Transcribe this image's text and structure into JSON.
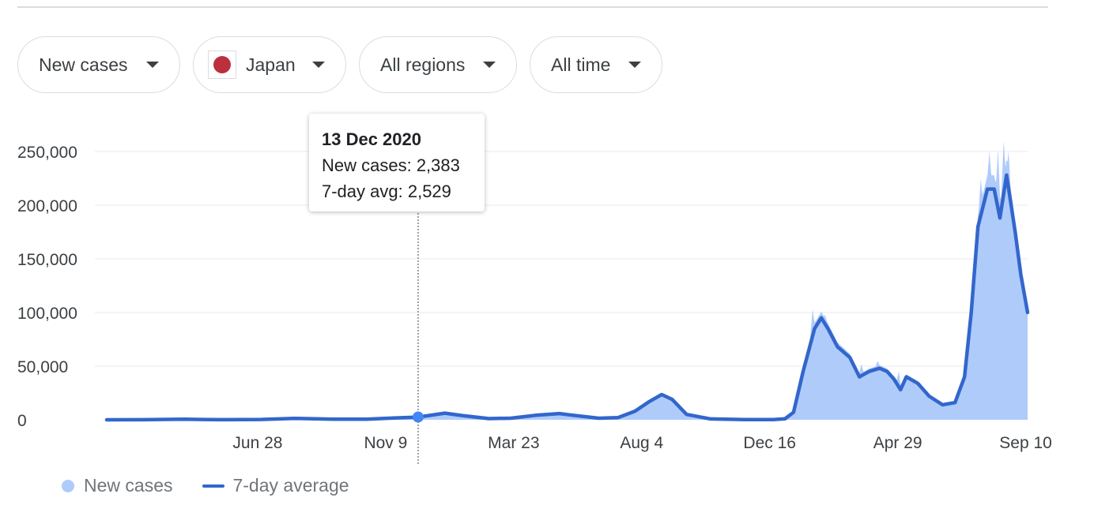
{
  "filters": {
    "metric": "New cases",
    "country": "Japan",
    "region": "All regions",
    "time_range": "All time"
  },
  "colors": {
    "bars": "#aecbfa",
    "line": "#3366cc",
    "flag": "#bc2f3f"
  },
  "tooltip": {
    "date": "13 Dec 2020",
    "new_cases_line": "New cases: 2,383",
    "avg_line": "7-day avg: 2,529"
  },
  "legend": {
    "bars_label": "New cases",
    "line_label": "7-day average"
  },
  "chart_data": {
    "type": "area",
    "title": "",
    "xlabel": "",
    "ylabel": "",
    "ylim": [
      0,
      250000
    ],
    "yticks": [
      0,
      50000,
      100000,
      150000,
      200000,
      250000
    ],
    "ytick_labels": [
      "0",
      "50,000",
      "100,000",
      "150,000",
      "200,000",
      "250,000"
    ],
    "xticks": [
      {
        "date": "2020-06-28",
        "label": "Jun 28"
      },
      {
        "date": "2020-11-09",
        "label": "Nov 9"
      },
      {
        "date": "2021-03-23",
        "label": "Mar 23"
      },
      {
        "date": "2021-08-04",
        "label": "Aug 4"
      },
      {
        "date": "2021-12-16",
        "label": "Dec 16"
      },
      {
        "date": "2022-04-29",
        "label": "Apr 29"
      },
      {
        "date": "2022-09-10",
        "label": "Sep 10"
      }
    ],
    "grid": "horizontal",
    "legend_position": "bottom-left",
    "highlight": {
      "date": "2020-12-13",
      "new_cases": 2383,
      "avg": 2529
    },
    "series": [
      {
        "name": "7-day average",
        "style": "line",
        "points": [
          [
            "2020-01-22",
            0
          ],
          [
            "2020-03-01",
            100
          ],
          [
            "2020-04-12",
            500
          ],
          [
            "2020-05-20",
            100
          ],
          [
            "2020-07-01",
            300
          ],
          [
            "2020-08-05",
            1300
          ],
          [
            "2020-09-15",
            500
          ],
          [
            "2020-10-20",
            600
          ],
          [
            "2020-11-20",
            1800
          ],
          [
            "2020-12-13",
            2529
          ],
          [
            "2021-01-10",
            6200
          ],
          [
            "2021-01-28",
            4000
          ],
          [
            "2021-02-25",
            1100
          ],
          [
            "2021-03-20",
            1500
          ],
          [
            "2021-04-15",
            4200
          ],
          [
            "2021-05-10",
            5800
          ],
          [
            "2021-05-20",
            4600
          ],
          [
            "2021-06-20",
            1500
          ],
          [
            "2021-07-10",
            2000
          ],
          [
            "2021-07-28",
            8000
          ],
          [
            "2021-08-12",
            17000
          ],
          [
            "2021-08-25",
            23500
          ],
          [
            "2021-09-05",
            19000
          ],
          [
            "2021-09-20",
            5000
          ],
          [
            "2021-10-15",
            800
          ],
          [
            "2021-11-20",
            150
          ],
          [
            "2021-12-20",
            200
          ],
          [
            "2022-01-01",
            900
          ],
          [
            "2022-01-10",
            7000
          ],
          [
            "2022-01-20",
            45000
          ],
          [
            "2022-02-01",
            85000
          ],
          [
            "2022-02-08",
            95000
          ],
          [
            "2022-02-15",
            85000
          ],
          [
            "2022-02-25",
            68000
          ],
          [
            "2022-03-10",
            58000
          ],
          [
            "2022-03-20",
            40000
          ],
          [
            "2022-03-30",
            45000
          ],
          [
            "2022-04-10",
            48000
          ],
          [
            "2022-04-18",
            45000
          ],
          [
            "2022-04-25",
            38000
          ],
          [
            "2022-05-02",
            28000
          ],
          [
            "2022-05-08",
            40000
          ],
          [
            "2022-05-20",
            34000
          ],
          [
            "2022-06-01",
            22000
          ],
          [
            "2022-06-15",
            14000
          ],
          [
            "2022-06-28",
            16000
          ],
          [
            "2022-07-08",
            40000
          ],
          [
            "2022-07-15",
            100000
          ],
          [
            "2022-07-22",
            180000
          ],
          [
            "2022-08-01",
            215000
          ],
          [
            "2022-08-08",
            215000
          ],
          [
            "2022-08-14",
            188000
          ],
          [
            "2022-08-21",
            228000
          ],
          [
            "2022-08-30",
            175000
          ],
          [
            "2022-09-05",
            135000
          ],
          [
            "2022-09-12",
            100000
          ]
        ]
      },
      {
        "name": "New cases",
        "style": "bars",
        "points": [
          [
            "2022-01-30",
            103000
          ],
          [
            "2022-02-12",
            98000
          ],
          [
            "2022-03-22",
            52000
          ],
          [
            "2022-04-08",
            55000
          ],
          [
            "2022-04-30",
            45000
          ],
          [
            "2022-07-25",
            225000
          ],
          [
            "2022-08-03",
            250000
          ],
          [
            "2022-08-12",
            252000
          ],
          [
            "2022-08-18",
            260000
          ],
          [
            "2022-08-23",
            250000
          ],
          [
            "2022-09-07",
            130000
          ],
          [
            "2022-09-12",
            82000
          ]
        ]
      }
    ]
  }
}
